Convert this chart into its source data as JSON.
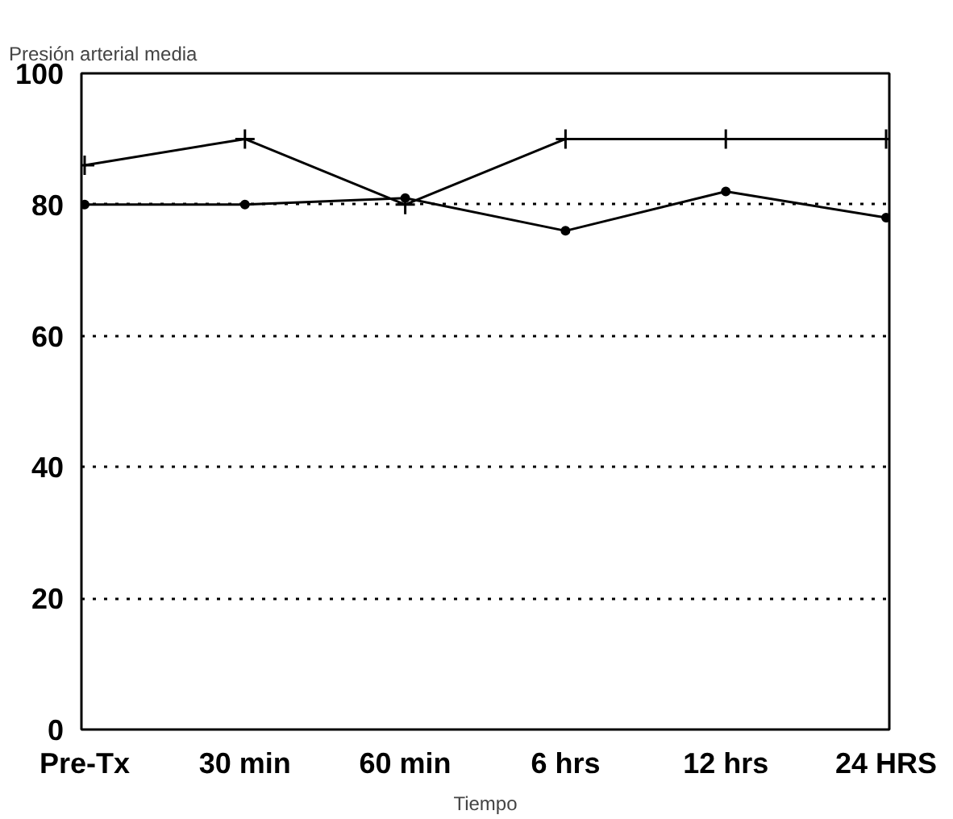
{
  "chart_data": {
    "type": "line",
    "title": "Presión arterial media",
    "xlabel": "Tiempo",
    "categories": [
      "Pre-Tx",
      "30 min",
      "60 min",
      "6 hrs",
      "12 hrs",
      "24 HRS"
    ],
    "series": [
      {
        "color": "#000000",
        "marker": "cross",
        "values": [
          86,
          90,
          80,
          90,
          90,
          90
        ]
      },
      {
        "color": "#000000",
        "marker": "circle",
        "values": [
          80,
          80,
          81,
          76,
          82,
          78
        ]
      }
    ],
    "ylim": [
      0,
      100
    ],
    "yticks": [
      0,
      20,
      40,
      60,
      80,
      100
    ],
    "grid": "y",
    "line_style": "solid"
  }
}
